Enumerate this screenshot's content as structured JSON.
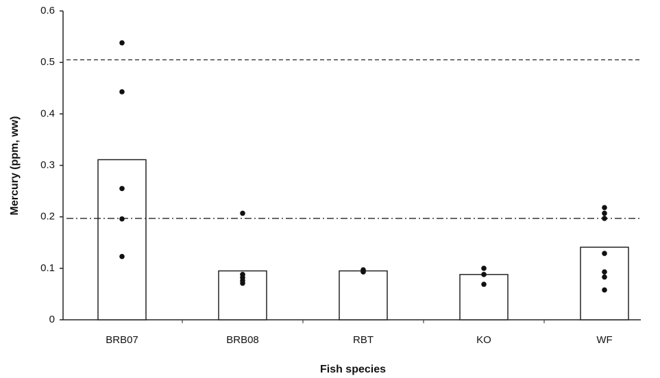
{
  "chart_data": {
    "type": "bar",
    "x_label": "Fish species",
    "y_label": "Mercury (ppm, ww)",
    "categories": [
      "BRB07",
      "BRB08",
      "RBT",
      "KO",
      "WF"
    ],
    "values": [
      0.311,
      0.095,
      0.095,
      0.088,
      0.141
    ],
    "color": "#ffffff",
    "points": [
      [
        0.538,
        0.443,
        0.255,
        0.196,
        0.123
      ],
      [
        0.207,
        0.088,
        0.082,
        0.076,
        0.071
      ],
      [
        0.097,
        0.095,
        0.093
      ],
      [
        0.1,
        0.088,
        0.069
      ],
      [
        0.218,
        0.207,
        0.197,
        0.129,
        0.093,
        0.083,
        0.058
      ]
    ],
    "point_color": "#111111",
    "reference_lines": [
      {
        "value": 0.505,
        "style": "dashed"
      },
      {
        "value": 0.197,
        "style": "dash-dot"
      }
    ],
    "ylim": [
      0,
      0.6
    ],
    "yticks": [
      0,
      0.1,
      0.2,
      0.3,
      0.4,
      0.5,
      0.6
    ],
    "grid": false
  }
}
